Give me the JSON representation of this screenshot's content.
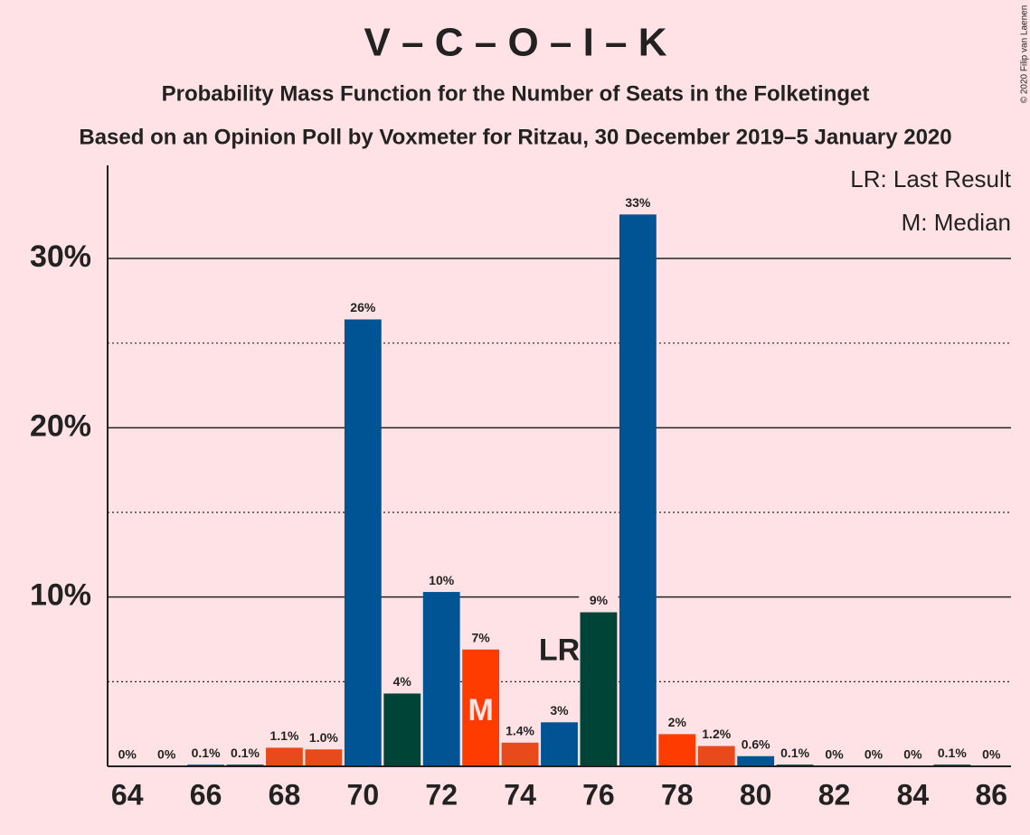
{
  "chart_data": {
    "type": "bar",
    "title": "V – C – O – I – K",
    "subtitle": "Probability Mass Function for the Number of Seats in the Folketinget",
    "subtitle2": "Based on an Opinion Poll by Voxmeter for Ritzau, 30 December 2019–5 January 2020",
    "copyright": "© 2020 Filip van Laenen",
    "legend": [
      "LR: Last Result",
      "M: Median"
    ],
    "x": [
      64,
      65,
      66,
      67,
      68,
      69,
      70,
      71,
      72,
      73,
      74,
      75,
      76,
      77,
      78,
      79,
      80,
      81,
      82,
      83,
      84,
      85,
      86
    ],
    "values": [
      0,
      0,
      0.1,
      0.1,
      1.1,
      1.0,
      26.4,
      4.3,
      10.3,
      6.9,
      1.4,
      2.6,
      9.1,
      32.6,
      1.9,
      1.2,
      0.6,
      0.1,
      0,
      0,
      0,
      0.1,
      0
    ],
    "value_labels": [
      "0%",
      "0%",
      "0.1%",
      "0.1%",
      "1.1%",
      "1.0%",
      "26%",
      "4%",
      "10%",
      "7%",
      "1.4%",
      "3%",
      "9%",
      "33%",
      "2%",
      "1.2%",
      "0.6%",
      "0.1%",
      "0%",
      "0%",
      "0%",
      "0.1%",
      "0%"
    ],
    "colors": [
      "#005494",
      "#e84a1b",
      "#005494",
      "#004438",
      "#e84a1b",
      "#e84a1b",
      "#005494",
      "#004438",
      "#005494",
      "#ff3c00",
      "#e84a1b",
      "#005494",
      "#004438",
      "#005494",
      "#ff3c00",
      "#e84a1b",
      "#005494",
      "#004438",
      "#005494",
      "#e84a1b",
      "#005494",
      "#004438",
      "#005494"
    ],
    "xlim": [
      63.5,
      86.5
    ],
    "xticks": [
      64,
      66,
      68,
      70,
      72,
      74,
      76,
      78,
      80,
      82,
      84,
      86
    ],
    "ylim": [
      0,
      35.5
    ],
    "yticks": [
      {
        "value": 10,
        "label": "10%"
      },
      {
        "value": 20,
        "label": "20%"
      },
      {
        "value": 30,
        "label": "30%"
      }
    ],
    "minor_yticks": [
      5,
      15,
      25
    ],
    "grid": true,
    "annotations": [
      {
        "label": "LR",
        "x": 75
      },
      {
        "label": "M",
        "x": 73
      }
    ]
  }
}
